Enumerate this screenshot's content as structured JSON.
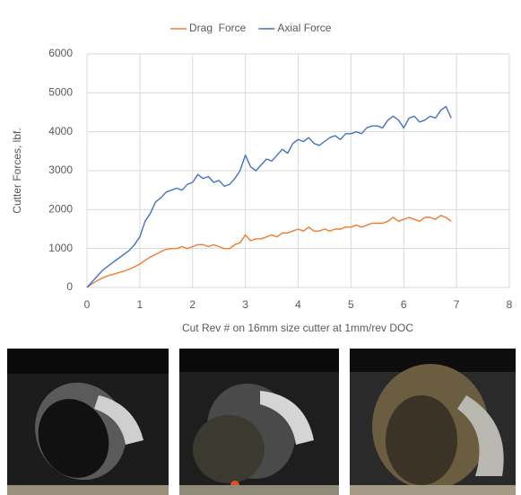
{
  "chart_data": {
    "type": "line",
    "x_label": "Cut Rev # on 16mm size cutter at 1mm/rev DOC",
    "y_label": "Cutter Forces, lbf.",
    "legend": "top",
    "grid": true,
    "xlim": [
      0,
      8
    ],
    "xticks": [
      0,
      1,
      2,
      3,
      4,
      5,
      6,
      7,
      8
    ],
    "ylim": [
      0,
      6000
    ],
    "yticks": [
      0,
      1000,
      2000,
      3000,
      4000,
      5000,
      6000
    ],
    "x": [
      0,
      0.1,
      0.2,
      0.3,
      0.4,
      0.5,
      0.6,
      0.7,
      0.8,
      0.9,
      1.0,
      1.1,
      1.2,
      1.3,
      1.4,
      1.5,
      1.6,
      1.7,
      1.8,
      1.9,
      2.0,
      2.1,
      2.2,
      2.3,
      2.4,
      2.5,
      2.6,
      2.7,
      2.8,
      2.9,
      3.0,
      3.1,
      3.2,
      3.3,
      3.4,
      3.5,
      3.6,
      3.7,
      3.8,
      3.9,
      4.0,
      4.1,
      4.2,
      4.3,
      4.4,
      4.5,
      4.6,
      4.7,
      4.8,
      4.9,
      5.0,
      5.1,
      5.2,
      5.3,
      5.4,
      5.5,
      5.6,
      5.7,
      5.8,
      5.9,
      6.0,
      6.1,
      6.2,
      6.3,
      6.4,
      6.5,
      6.6,
      6.7,
      6.8,
      6.9
    ],
    "series": [
      {
        "name": "Drag  Force",
        "color": "#ed7d31",
        "values": [
          0,
          100,
          180,
          250,
          300,
          340,
          380,
          420,
          470,
          530,
          600,
          700,
          780,
          850,
          920,
          980,
          1000,
          1000,
          1050,
          1000,
          1050,
          1100,
          1100,
          1050,
          1100,
          1050,
          1000,
          1000,
          1100,
          1150,
          1350,
          1200,
          1250,
          1250,
          1300,
          1350,
          1300,
          1400,
          1400,
          1450,
          1500,
          1450,
          1550,
          1450,
          1450,
          1500,
          1450,
          1500,
          1500,
          1550,
          1550,
          1600,
          1550,
          1600,
          1650,
          1650,
          1650,
          1700,
          1800,
          1700,
          1750,
          1800,
          1750,
          1700,
          1800,
          1800,
          1750,
          1850,
          1800,
          1700
        ]
      },
      {
        "name": "Axial Force",
        "color": "#4472c4",
        "values": [
          0,
          150,
          300,
          450,
          550,
          650,
          750,
          850,
          950,
          1100,
          1300,
          1700,
          1900,
          2200,
          2300,
          2450,
          2500,
          2550,
          2500,
          2650,
          2700,
          2900,
          2800,
          2850,
          2700,
          2750,
          2600,
          2650,
          2800,
          3000,
          3400,
          3100,
          3000,
          3150,
          3300,
          3250,
          3400,
          3550,
          3450,
          3700,
          3800,
          3750,
          3850,
          3700,
          3650,
          3750,
          3850,
          3900,
          3800,
          3950,
          3950,
          4000,
          3950,
          4100,
          4150,
          4150,
          4100,
          4300,
          4400,
          4300,
          4100,
          4350,
          4400,
          4250,
          4300,
          4400,
          4350,
          4550,
          4650,
          4350
        ]
      }
    ]
  }
}
